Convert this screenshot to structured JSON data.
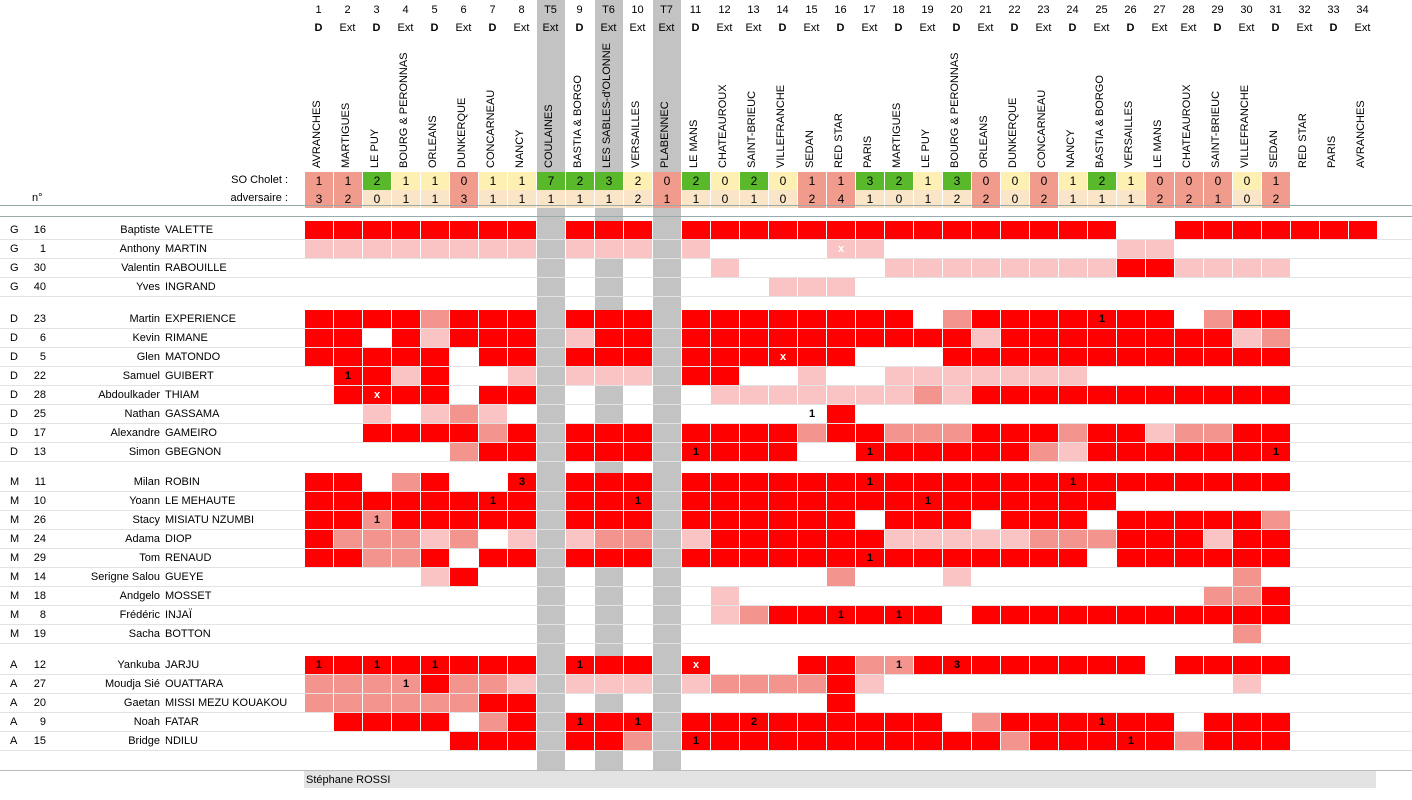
{
  "colors": {
    "s3": "#ff0000",
    "s2": "#f3948f",
    "s1": "#fbc4c4",
    "win": "#5ab92b",
    "draw": "#fef0b2",
    "loss": "#f19b8c",
    "adv": "#fbe5c8",
    "tband": "#c3c3c3",
    "staff": "#e3e3e3"
  },
  "labels": {
    "so_cholet": "SO Cholet :",
    "adversaire": "adversaire :",
    "n": "n°"
  },
  "columns": [
    {
      "num": "1",
      "type": "D",
      "opp": "AVRANCHES",
      "so": "1",
      "adv": "3",
      "res": "loss"
    },
    {
      "num": "2",
      "type": "Ext",
      "opp": "MARTIGUES",
      "so": "1",
      "adv": "2",
      "res": "loss"
    },
    {
      "num": "3",
      "type": "D",
      "opp": "LE PUY",
      "so": "2",
      "adv": "0",
      "res": "win"
    },
    {
      "num": "4",
      "type": "Ext",
      "opp": "BOURG & PERONNAS",
      "so": "1",
      "adv": "1",
      "res": "draw"
    },
    {
      "num": "5",
      "type": "D",
      "opp": "ORLEANS",
      "so": "1",
      "adv": "1",
      "res": "draw"
    },
    {
      "num": "6",
      "type": "Ext",
      "opp": "DUNKERQUE",
      "so": "0",
      "adv": "3",
      "res": "loss"
    },
    {
      "num": "7",
      "type": "D",
      "opp": "CONCARNEAU",
      "so": "1",
      "adv": "1",
      "res": "draw"
    },
    {
      "num": "8",
      "type": "Ext",
      "opp": "NANCY",
      "so": "1",
      "adv": "1",
      "res": "draw"
    },
    {
      "num": "T5",
      "type": "Ext",
      "opp": "COULAINES",
      "so": "7",
      "adv": "1",
      "res": "win",
      "cup": true
    },
    {
      "num": "9",
      "type": "D",
      "opp": "BASTIA & BORGO",
      "so": "2",
      "adv": "1",
      "res": "win"
    },
    {
      "num": "T6",
      "type": "Ext",
      "opp": "LES SABLES-d'OLONNE",
      "so": "3",
      "adv": "1",
      "res": "win",
      "cup": true
    },
    {
      "num": "10",
      "type": "Ext",
      "opp": "VERSAILLES",
      "so": "2",
      "adv": "2",
      "res": "draw"
    },
    {
      "num": "T7",
      "type": "Ext",
      "opp": "PLABENNEC",
      "so": "0",
      "adv": "1",
      "res": "loss",
      "cup": true
    },
    {
      "num": "11",
      "type": "D",
      "opp": "LE MANS",
      "so": "2",
      "adv": "1",
      "res": "win"
    },
    {
      "num": "12",
      "type": "Ext",
      "opp": "CHATEAUROUX",
      "so": "0",
      "adv": "0",
      "res": "draw"
    },
    {
      "num": "13",
      "type": "Ext",
      "opp": "SAINT-BRIEUC",
      "so": "2",
      "adv": "1",
      "res": "win"
    },
    {
      "num": "14",
      "type": "D",
      "opp": "VILLEFRANCHE",
      "so": "0",
      "adv": "0",
      "res": "draw"
    },
    {
      "num": "15",
      "type": "Ext",
      "opp": "SEDAN",
      "so": "1",
      "adv": "2",
      "res": "loss"
    },
    {
      "num": "16",
      "type": "D",
      "opp": "RED STAR",
      "so": "1",
      "adv": "4",
      "res": "loss"
    },
    {
      "num": "17",
      "type": "Ext",
      "opp": "PARIS",
      "so": "3",
      "adv": "1",
      "res": "win"
    },
    {
      "num": "18",
      "type": "D",
      "opp": "MARTIGUES",
      "so": "2",
      "adv": "0",
      "res": "win"
    },
    {
      "num": "19",
      "type": "Ext",
      "opp": "LE PUY",
      "so": "1",
      "adv": "1",
      "res": "draw"
    },
    {
      "num": "20",
      "type": "D",
      "opp": "BOURG & PERONNAS",
      "so": "3",
      "adv": "2",
      "res": "win"
    },
    {
      "num": "21",
      "type": "Ext",
      "opp": "ORLEANS",
      "so": "0",
      "adv": "2",
      "res": "loss"
    },
    {
      "num": "22",
      "type": "D",
      "opp": "DUNKERQUE",
      "so": "0",
      "adv": "0",
      "res": "draw"
    },
    {
      "num": "23",
      "type": "Ext",
      "opp": "CONCARNEAU",
      "so": "0",
      "adv": "2",
      "res": "loss"
    },
    {
      "num": "24",
      "type": "D",
      "opp": "NANCY",
      "so": "1",
      "adv": "1",
      "res": "draw"
    },
    {
      "num": "25",
      "type": "Ext",
      "opp": "BASTIA & BORGO",
      "so": "2",
      "adv": "1",
      "res": "win"
    },
    {
      "num": "26",
      "type": "D",
      "opp": "VERSAILLES",
      "so": "1",
      "adv": "1",
      "res": "draw"
    },
    {
      "num": "27",
      "type": "Ext",
      "opp": "LE MANS",
      "so": "0",
      "adv": "2",
      "res": "loss"
    },
    {
      "num": "28",
      "type": "Ext",
      "opp": "CHATEAUROUX",
      "so": "0",
      "adv": "2",
      "res": "loss"
    },
    {
      "num": "29",
      "type": "D",
      "opp": "SAINT-BRIEUC",
      "so": "0",
      "adv": "1",
      "res": "loss"
    },
    {
      "num": "30",
      "type": "Ext",
      "opp": "VILLEFRANCHE",
      "so": "0",
      "adv": "0",
      "res": "draw"
    },
    {
      "num": "31",
      "type": "D",
      "opp": "SEDAN",
      "so": "1",
      "adv": "2",
      "res": "loss"
    },
    {
      "num": "32",
      "type": "Ext",
      "opp": "RED STAR",
      "so": "",
      "adv": "",
      "res": ""
    },
    {
      "num": "33",
      "type": "D",
      "opp": "PARIS",
      "so": "",
      "adv": "",
      "res": ""
    },
    {
      "num": "34",
      "type": "Ext",
      "opp": "AVRANCHES",
      "so": "",
      "adv": "",
      "res": ""
    }
  ],
  "groups": [
    {
      "players": [
        {
          "pos": "G",
          "num": "16",
          "first": "Baptiste",
          "last": "VALETTE",
          "cells": "3333333303330333333333333333003333333"
        },
        {
          "pos": "G",
          "num": "1",
          "first": "Anthony",
          "last": "MARTIN",
          "cells": "1111111101110100001100000000110000000",
          "marks": {
            "18": "x"
          }
        },
        {
          "pos": "G",
          "num": "30",
          "first": "Valentin",
          "last": "RABOUILLE",
          "cells": "0000000000000010000011111111331111000"
        },
        {
          "pos": "G",
          "num": "40",
          "first": "Yves",
          "last": "INGRAND",
          "cells": "0000000000000000111000000000000000000"
        }
      ]
    },
    {
      "players": [
        {
          "pos": "D",
          "num": "23",
          "first": "Martin",
          "last": "EXPERIENCE",
          "cells": "3333233303330333333330233333330233000",
          "marks": {
            "27": "1"
          }
        },
        {
          "pos": "D",
          "num": "6",
          "first": "Kevin",
          "last": "RIMANE",
          "cells": "3303133301330333333333313333333312000",
          "marks": {}
        },
        {
          "pos": "D",
          "num": "5",
          "first": "Glen",
          "last": "MATONDO",
          "cells": "3333303303330333333000333333333333000",
          "marks": {
            "16": "x"
          }
        },
        {
          "pos": "D",
          "num": "22",
          "first": "Samuel",
          "last": "GUIBERT",
          "cells": "0331300101110330010011111110000000000",
          "marks": {
            "1": "1"
          }
        },
        {
          "pos": "D",
          "num": "28",
          "first": "Abdoulkader",
          "last": "THIAM",
          "cells": "0333303300000011111112133333333333000",
          "marks": {
            "2": "x"
          }
        },
        {
          "pos": "D",
          "num": "25",
          "first": "Nathan",
          "last": "GASSAMA",
          "cells": "0010121000000000003000000000000000000",
          "marks": {
            "17": "1"
          }
        },
        {
          "pos": "D",
          "num": "17",
          "first": "Alexandre",
          "last": "GAMEIRO",
          "cells": "0033332303330333323322233323312233000",
          "marks": {}
        },
        {
          "pos": "D",
          "num": "13",
          "first": "Simon",
          "last": "GBEGNON",
          "cells": "0000023303330333300333333213333333000",
          "marks": {
            "13": "1",
            "19": "1",
            "33": "1"
          }
        }
      ]
    },
    {
      "players": [
        {
          "pos": "M",
          "num": "11",
          "first": "Milan",
          "last": "ROBIN",
          "cells": "3302300303330333333333333333333333000",
          "marks": {
            "7": "3",
            "19": "1",
            "26": "1"
          },
          "special": {
            "7": "1"
          }
        },
        {
          "pos": "M",
          "num": "10",
          "first": "Yoann",
          "last": "LE MEHAUTE",
          "cells": "3333333303330333333333333333000000000",
          "marks": {
            "6": "1",
            "11": "1",
            "21": "1"
          }
        },
        {
          "pos": "M",
          "num": "26",
          "first": "Stacy",
          "last": "MISIATU NZUMBI",
          "cells": "3323333303330333333033303330333332000",
          "marks": {
            "2": "1"
          }
        },
        {
          "pos": "M",
          "num": "24",
          "first": "Adama",
          "last": "DIOP",
          "cells": "3222120101220133333311111222333133000",
          "marks": {}
        },
        {
          "pos": "M",
          "num": "29",
          "first": "Tom",
          "last": "RENAUD",
          "cells": "3322303303330333333333333330333333000",
          "marks": {
            "19": "1"
          }
        },
        {
          "pos": "M",
          "num": "14",
          "first": "Serigne Salou",
          "last": "GUEYE",
          "cells": "0000130000000000002000100000000020000",
          "marks": {}
        },
        {
          "pos": "M",
          "num": "18",
          "first": "Andgelo",
          "last": "MOSSET",
          "cells": "0000000000000010000000000000000223000",
          "marks": {}
        },
        {
          "pos": "M",
          "num": "8",
          "first": "Frédéric",
          "last": "INJAÏ",
          "cells": "0000000000000012333333033333333333000",
          "marks": {
            "18": "1",
            "20": "1"
          }
        },
        {
          "pos": "M",
          "num": "19",
          "first": "Sacha",
          "last": "BOTTON",
          "cells": "0000000000000000000000000000000020000",
          "marks": {}
        }
      ]
    },
    {
      "players": [
        {
          "pos": "A",
          "num": "12",
          "first": "Yankuba",
          "last": "JARJU",
          "cells": "3333333303330300033223333333303333000",
          "marks": {
            "0": "1",
            "2": "1",
            "4": "1",
            "9": "1",
            "13": "x",
            "20": "1",
            "22": "3"
          }
        },
        {
          "pos": "A",
          "num": "27",
          "first": "Moudja Sié",
          "last": "OUATTARA",
          "cells": "2222322101110122223100000000000010000",
          "marks": {
            "3": "1"
          }
        },
        {
          "pos": "A",
          "num": "20",
          "first": "Gaetan",
          "last": "MISSI MEZU KOUAKOU",
          "cells": "2222223300000000003000000000000000000",
          "marks": {}
        },
        {
          "pos": "A",
          "num": "9",
          "first": "Noah",
          "last": "FATAR",
          "cells": "0333302303330333333333023333330333000",
          "marks": {
            "9": "1",
            "11": "1",
            "15": "2",
            "27": "1"
          }
        },
        {
          "pos": "A",
          "num": "15",
          "first": "Bridge",
          "last": "NDILU",
          "cells": "0000033303320333333333332333332333000",
          "marks": {
            "13": "1",
            "28": "1"
          }
        }
      ]
    }
  ],
  "staff": {
    "name": "Stéphane ROSSI"
  }
}
